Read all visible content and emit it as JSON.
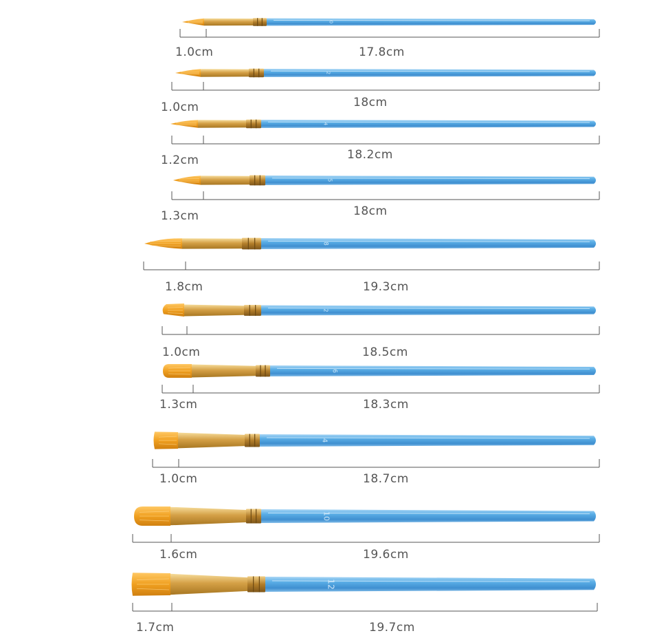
{
  "product": "paintbrush set",
  "colors": {
    "handle": "#4a9fdc",
    "handle_light": "#8fc9f2",
    "ferrule": "#d8a64a",
    "bristle": "#f0a020",
    "dimension_line": "#555555",
    "label_text": "#555555"
  },
  "brushes": [
    {
      "size_mark": "0",
      "tip_length": "1.0cm",
      "total_length": "17.8cm",
      "tip_shape": "round"
    },
    {
      "size_mark": "2",
      "tip_length": "1.0cm",
      "total_length": "18cm",
      "tip_shape": "round"
    },
    {
      "size_mark": "4",
      "tip_length": "1.2cm",
      "total_length": "18.2cm",
      "tip_shape": "round"
    },
    {
      "size_mark": "5",
      "tip_length": "1.3cm",
      "total_length": "18cm",
      "tip_shape": "round"
    },
    {
      "size_mark": "8",
      "tip_length": "1.8cm",
      "total_length": "19.3cm",
      "tip_shape": "round"
    },
    {
      "size_mark": "2",
      "tip_length": "1.0cm",
      "total_length": "18.5cm",
      "tip_shape": "angle"
    },
    {
      "size_mark": "6",
      "tip_length": "1.3cm",
      "total_length": "18.3cm",
      "tip_shape": "filbert"
    },
    {
      "size_mark": "4",
      "tip_length": "1.0cm",
      "total_length": "18.7cm",
      "tip_shape": "flat"
    },
    {
      "size_mark": "10",
      "tip_length": "1.6cm",
      "total_length": "19.6cm",
      "tip_shape": "filbert"
    },
    {
      "size_mark": "12",
      "tip_length": "1.7cm",
      "total_length": "19.7cm",
      "tip_shape": "flat"
    }
  ]
}
